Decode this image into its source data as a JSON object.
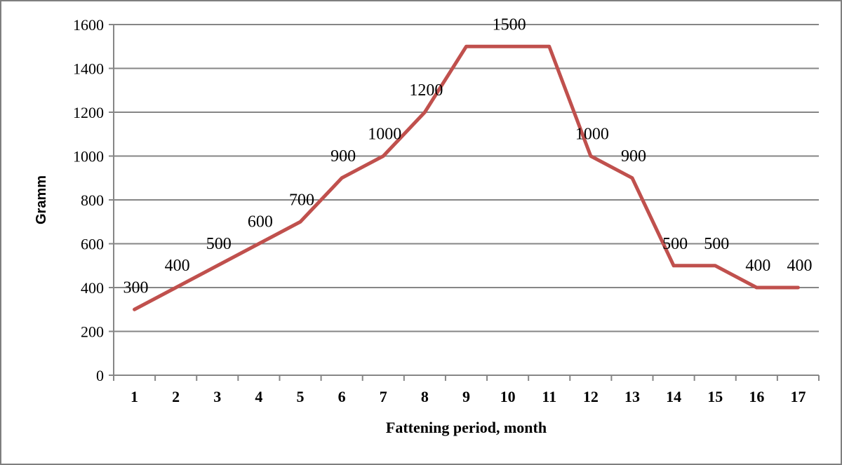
{
  "chart_data": {
    "type": "line",
    "title": "",
    "xlabel": "Fattening period, month",
    "ylabel": "Gramm",
    "categories": [
      "1",
      "2",
      "3",
      "4",
      "5",
      "6",
      "7",
      "8",
      "9",
      "10",
      "11",
      "12",
      "13",
      "14",
      "15",
      "16",
      "17"
    ],
    "series": [
      {
        "values": [
          300,
          400,
          500,
          600,
          700,
          900,
          1000,
          1200,
          1500,
          1500,
          1500,
          1000,
          900,
          500,
          500,
          400,
          400
        ],
        "color": "#c0504d"
      }
    ],
    "data_labels": [
      {
        "category": "1",
        "text": "300"
      },
      {
        "category": "2",
        "text": "400"
      },
      {
        "category": "3",
        "text": "500"
      },
      {
        "category": "4",
        "text": "600"
      },
      {
        "category": "5",
        "text": "700"
      },
      {
        "category": "6",
        "text": "900"
      },
      {
        "category": "7",
        "text": "1000"
      },
      {
        "category": "8",
        "text": "1200"
      },
      {
        "category": "10",
        "text": "1500"
      },
      {
        "category": "12",
        "text": "1000"
      },
      {
        "category": "13",
        "text": "900"
      },
      {
        "category": "14",
        "text": "500"
      },
      {
        "category": "15",
        "text": "500"
      },
      {
        "category": "16",
        "text": "400"
      },
      {
        "category": "17",
        "text": "400"
      }
    ],
    "y_ticks": [
      "0",
      "200",
      "400",
      "600",
      "800",
      "1000",
      "1200",
      "1400",
      "1600"
    ],
    "ylim": [
      0,
      1600
    ],
    "grid": true,
    "legend": "none",
    "gridline_color": "#868686",
    "axis_color": "#868686"
  }
}
